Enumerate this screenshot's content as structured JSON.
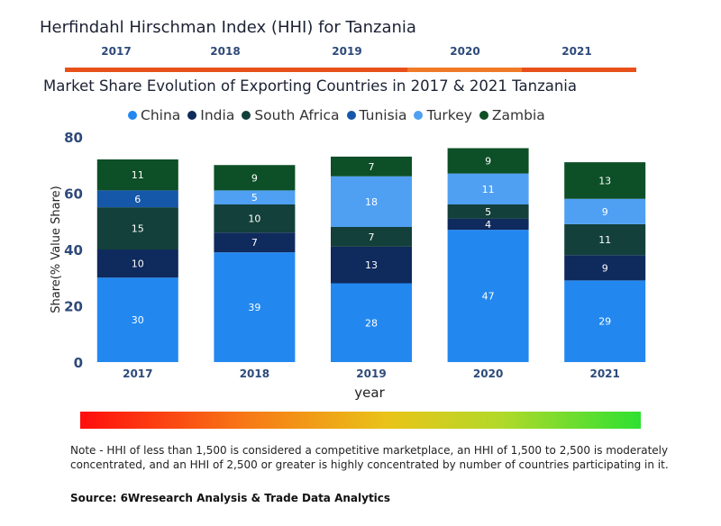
{
  "header": {
    "hhi_title": "Herfindahl Hirschman Index (HHI) for Tanzania",
    "years": [
      "2017",
      "2018",
      "2019",
      "2020",
      "2021"
    ],
    "year_bar_colors": [
      "#e8501a",
      "#e8501a",
      "#e8501a",
      "#f07a28",
      "#e8501a"
    ]
  },
  "chart_data": {
    "type": "bar",
    "stacked": true,
    "title": "Market Share Evolution of Exporting Countries in 2017 & 2021 Tanzania",
    "xlabel": "year",
    "ylabel": "Share(% Value Share)",
    "ylim": [
      0,
      80
    ],
    "yticks": [
      "0",
      "20",
      "40",
      "60",
      "80"
    ],
    "categories": [
      "2017",
      "2018",
      "2019",
      "2020",
      "2021"
    ],
    "legend_position": "top-center",
    "series": [
      {
        "name": "China",
        "color": "#2288f0",
        "label_color": "#ffffff",
        "values": [
          30,
          39,
          28,
          47,
          29
        ],
        "labels": [
          "30",
          "39",
          "28",
          "47",
          "29"
        ]
      },
      {
        "name": "India",
        "color": "#0f2a5c",
        "label_color": "#ffffff",
        "values": [
          10,
          7,
          13,
          4,
          9
        ],
        "labels": [
          "10",
          "7",
          "13",
          "4",
          "9"
        ]
      },
      {
        "name": "South Africa",
        "color": "#13403a",
        "label_color": "#ffffff",
        "values": [
          15,
          10,
          7,
          5,
          11
        ],
        "labels": [
          "15",
          "10",
          "7",
          "5",
          "11"
        ]
      },
      {
        "name": "Tunisia",
        "color": "#1557a8",
        "label_color": "#ffffff",
        "values": [
          6,
          0,
          0,
          0,
          0
        ],
        "labels": [
          "6",
          "",
          "",
          "",
          ""
        ]
      },
      {
        "name": "Turkey",
        "color": "#4fa0f2",
        "label_color": "#ffffff",
        "values": [
          0,
          5,
          18,
          11,
          9
        ],
        "labels": [
          "",
          "5",
          "18",
          "11",
          "9"
        ]
      },
      {
        "name": "Zambia",
        "color": "#0d4f26",
        "label_color": "#ffffff",
        "values": [
          11,
          9,
          7,
          9,
          13
        ],
        "labels": [
          "11",
          "9",
          "7",
          "9",
          "13"
        ]
      }
    ]
  },
  "footer": {
    "note": "Note - HHI of less than 1,500 is considered a competitive marketplace, an HHI of 1,500 to 2,500 is moderately concentrated, and an HHI of 2,500 or greater is highly concentrated by number of countries participating in it.",
    "source": "Source: 6Wresearch Analysis & Trade Data Analytics"
  }
}
